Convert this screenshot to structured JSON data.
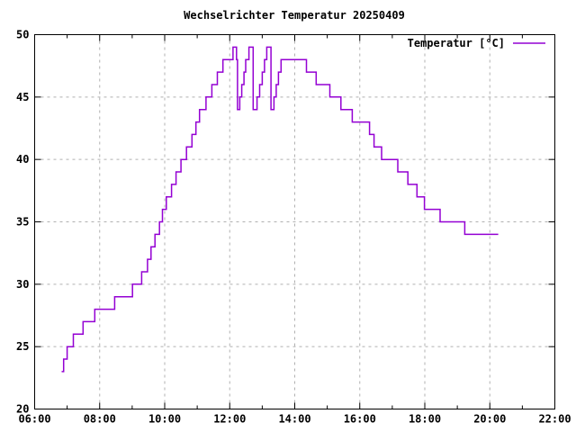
{
  "window": {
    "background_color": "#ffffff"
  },
  "chart_data": {
    "type": "line",
    "line_style": "steps-post",
    "title": "Wechselrichter Temperatur 20250409",
    "legend_label": "Temperatur [°C]",
    "legend_position": "top-right-inside",
    "line_color": "#9400d3",
    "grid_color": "#b0b0b0",
    "axis_color": "#000000",
    "grid": "dashed",
    "xlabel": "",
    "ylabel": "",
    "x_axis": {
      "unit": "time",
      "min_hours": 6,
      "max_hours": 22,
      "major_ticks_hours": [
        6,
        8,
        10,
        12,
        14,
        16,
        18,
        20,
        22
      ],
      "tick_labels": [
        "06:00",
        "08:00",
        "10:00",
        "12:00",
        "14:00",
        "16:00",
        "18:00",
        "20:00",
        "22:00"
      ],
      "minor_tick_every_hours": 1
    },
    "y_axis": {
      "unit": "°C",
      "min": 20,
      "max": 50,
      "major_ticks": [
        20,
        25,
        30,
        35,
        40,
        45,
        50
      ],
      "tick_labels": [
        "20",
        "25",
        "30",
        "35",
        "40",
        "45",
        "50"
      ]
    },
    "series": [
      {
        "name": "Temperatur [°C]",
        "color": "#9400d3",
        "points_hours_tempC": [
          [
            6.83,
            23
          ],
          [
            6.89,
            24
          ],
          [
            7.0,
            25
          ],
          [
            7.19,
            26
          ],
          [
            7.49,
            27
          ],
          [
            7.85,
            28
          ],
          [
            8.46,
            29
          ],
          [
            9.01,
            30
          ],
          [
            9.29,
            31
          ],
          [
            9.47,
            32
          ],
          [
            9.58,
            33
          ],
          [
            9.7,
            34
          ],
          [
            9.84,
            35
          ],
          [
            9.93,
            36
          ],
          [
            10.05,
            37
          ],
          [
            10.21,
            38
          ],
          [
            10.35,
            39
          ],
          [
            10.5,
            40
          ],
          [
            10.67,
            41
          ],
          [
            10.84,
            42
          ],
          [
            10.96,
            43
          ],
          [
            11.07,
            44
          ],
          [
            11.27,
            45
          ],
          [
            11.45,
            46
          ],
          [
            11.62,
            47
          ],
          [
            11.79,
            48
          ],
          [
            12.1,
            49
          ],
          [
            12.21,
            48
          ],
          [
            12.24,
            44
          ],
          [
            12.31,
            45
          ],
          [
            12.37,
            46
          ],
          [
            12.44,
            47
          ],
          [
            12.49,
            48
          ],
          [
            12.59,
            49
          ],
          [
            12.72,
            44
          ],
          [
            12.84,
            45
          ],
          [
            12.92,
            46
          ],
          [
            13.0,
            47
          ],
          [
            13.07,
            48
          ],
          [
            13.14,
            49
          ],
          [
            13.27,
            44
          ],
          [
            13.36,
            45
          ],
          [
            13.43,
            46
          ],
          [
            13.5,
            47
          ],
          [
            13.58,
            48
          ],
          [
            14.36,
            47
          ],
          [
            14.66,
            46
          ],
          [
            15.08,
            45
          ],
          [
            15.42,
            44
          ],
          [
            15.77,
            43
          ],
          [
            16.3,
            42
          ],
          [
            16.44,
            41
          ],
          [
            16.67,
            40
          ],
          [
            17.17,
            39
          ],
          [
            17.48,
            38
          ],
          [
            17.76,
            37
          ],
          [
            17.99,
            36
          ],
          [
            18.47,
            35
          ],
          [
            19.23,
            34
          ],
          [
            20.26,
            34
          ]
        ]
      }
    ]
  }
}
